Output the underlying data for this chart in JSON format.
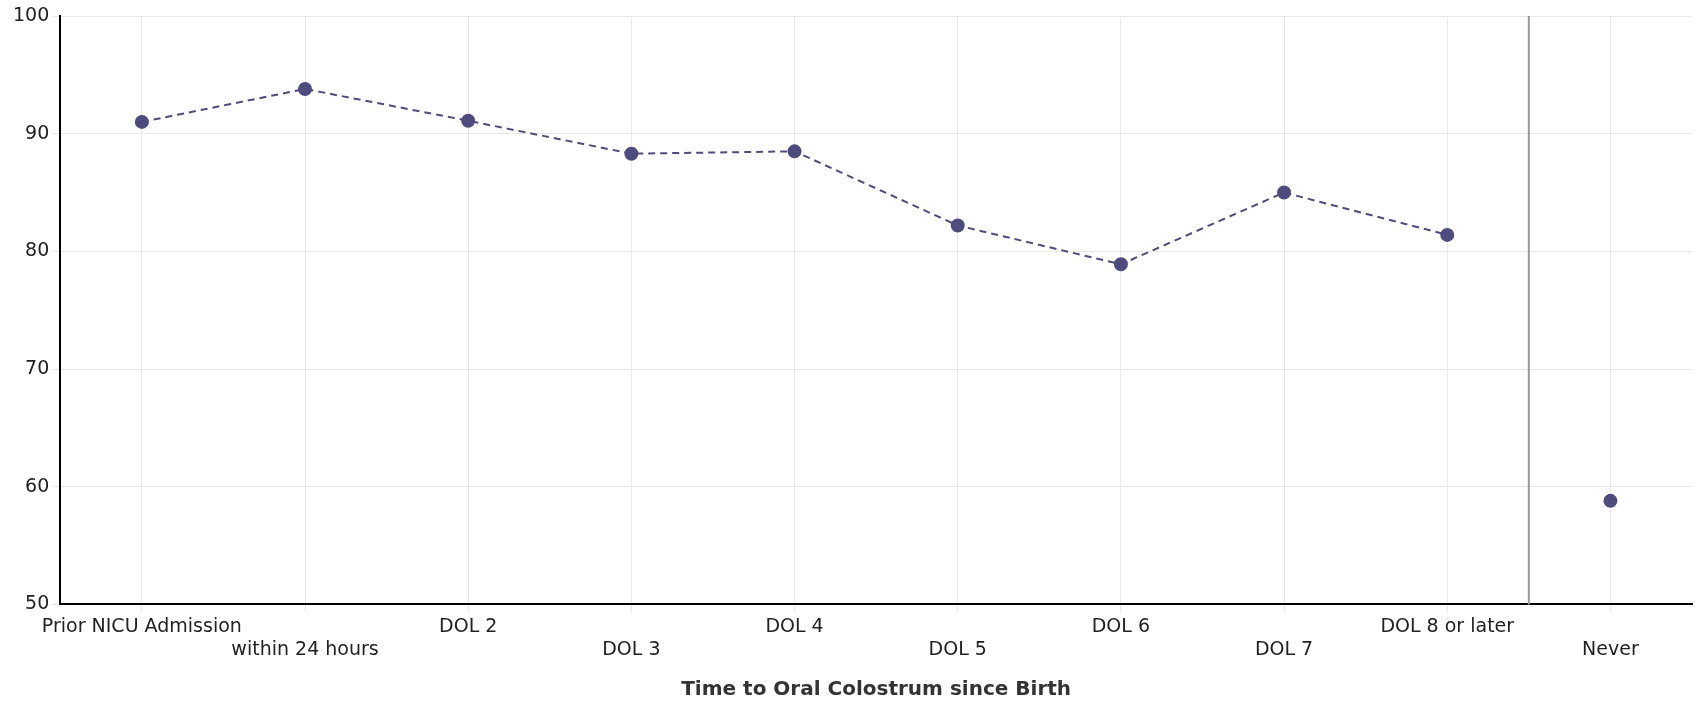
{
  "chart_data": {
    "type": "line",
    "xlabel": "Time to Oral Colostrum since Birth",
    "categories": [
      "Prior NICU Admission",
      "within 24 hours",
      "DOL 2",
      "DOL 3",
      "DOL 4",
      "DOL 5",
      "DOL 6",
      "DOL 7",
      "DOL 8 or later",
      "Never"
    ],
    "series": [
      {
        "color": "#4e4c7f",
        "values": [
          91.0,
          93.8,
          91.1,
          88.3,
          88.5,
          82.2,
          78.9,
          85.0,
          81.4,
          null
        ]
      },
      {
        "type": "scatter",
        "color": "#4e4c7f",
        "values": [
          null,
          null,
          null,
          null,
          null,
          null,
          null,
          null,
          null,
          58.8
        ]
      }
    ],
    "ylim": [
      50,
      100
    ],
    "yticks": [
      50,
      60,
      70,
      80,
      90,
      100
    ],
    "ref_lines": [
      {
        "axis": "x",
        "value": "Never",
        "color": "#999999",
        "line_style": "solid"
      }
    ],
    "grid": true,
    "legend": false,
    "marker": "circle",
    "line_style": "dashed"
  }
}
